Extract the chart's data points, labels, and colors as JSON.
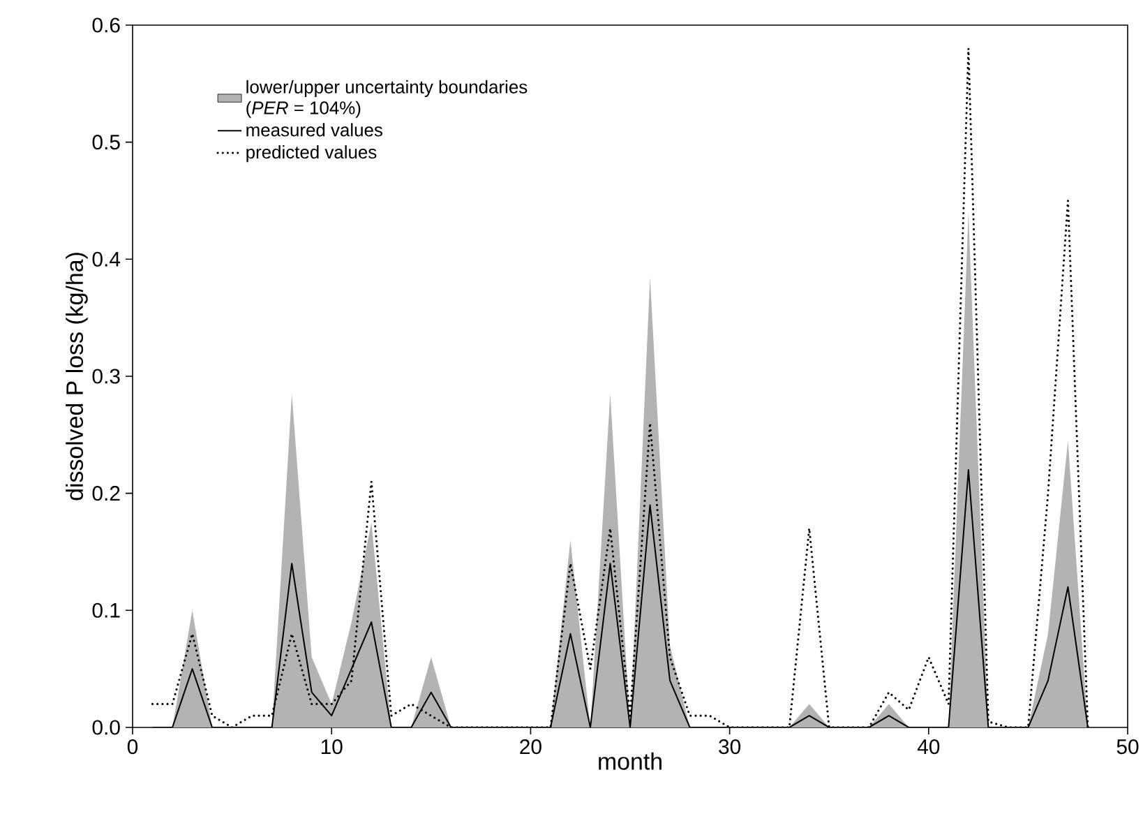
{
  "chart_data": {
    "type": "line",
    "xlabel": "month",
    "ylabel": "dissolved P loss (kg/ha)",
    "x": [
      1,
      2,
      3,
      4,
      5,
      6,
      7,
      8,
      9,
      10,
      11,
      12,
      13,
      14,
      15,
      16,
      17,
      18,
      19,
      20,
      21,
      22,
      23,
      24,
      25,
      26,
      27,
      28,
      29,
      30,
      31,
      32,
      33,
      34,
      35,
      36,
      37,
      38,
      39,
      40,
      41,
      42,
      43,
      44,
      45,
      46,
      47,
      48
    ],
    "series": [
      {
        "name": "lower/upper uncertainty boundaries (*PER* = 104%)",
        "type": "area",
        "color": "#b3b3b3",
        "values": [
          0,
          0,
          0.1,
          0,
          0,
          0,
          0,
          0.285,
          0.06,
          0.02,
          0.09,
          0.175,
          0,
          0,
          0.06,
          0,
          0,
          0,
          0,
          0,
          0,
          0.16,
          0,
          0.285,
          0,
          0.385,
          0.07,
          0,
          0,
          0,
          0,
          0,
          0,
          0.02,
          0,
          0,
          0,
          0.02,
          0,
          0,
          0,
          0.44,
          0,
          0,
          0,
          0.08,
          0.245,
          0
        ]
      },
      {
        "name": "measured values",
        "color": "#000000",
        "line_style": "solid",
        "values": [
          0,
          0,
          0.05,
          0,
          0,
          0,
          0,
          0.14,
          0.03,
          0.01,
          0.05,
          0.09,
          0,
          0,
          0.03,
          0,
          0,
          0,
          0,
          0,
          0,
          0.08,
          0,
          0.14,
          0,
          0.19,
          0.04,
          0,
          0,
          0,
          0,
          0,
          0,
          0.01,
          0,
          0,
          0,
          0.01,
          0,
          0,
          0,
          0.22,
          0,
          0,
          0,
          0.04,
          0.12,
          0
        ]
      },
      {
        "name": "predicted values",
        "color": "#000000",
        "line_style": "dotted",
        "values": [
          0.02,
          0.02,
          0.08,
          0.01,
          0,
          0.01,
          0.01,
          0.08,
          0.02,
          0.02,
          0.04,
          0.21,
          0.01,
          0.02,
          0.01,
          0,
          0,
          0,
          0,
          0,
          0,
          0.14,
          0.05,
          0.17,
          0.01,
          0.26,
          0.06,
          0.01,
          0.01,
          0,
          0,
          0,
          0,
          0.17,
          0,
          0,
          0,
          0.03,
          0.015,
          0.06,
          0.02,
          0.58,
          0.005,
          0,
          0,
          0.2,
          0.45,
          0
        ]
      }
    ],
    "xlim": [
      0,
      50
    ],
    "xticks": [
      0,
      10,
      20,
      30,
      40,
      50
    ],
    "ylim": [
      0,
      0.6
    ],
    "yticks": [
      {
        "value": 0,
        "label": "0.0"
      },
      {
        "value": 0.1,
        "label": "0.1"
      },
      {
        "value": 0.2,
        "label": "0.2"
      },
      {
        "value": 0.3,
        "label": "0.3"
      },
      {
        "value": 0.4,
        "label": "0.4"
      },
      {
        "value": 0.5,
        "label": "0.5"
      },
      {
        "value": 0.6,
        "label": "0.6"
      }
    ],
    "legend": "top left",
    "grid": false
  }
}
